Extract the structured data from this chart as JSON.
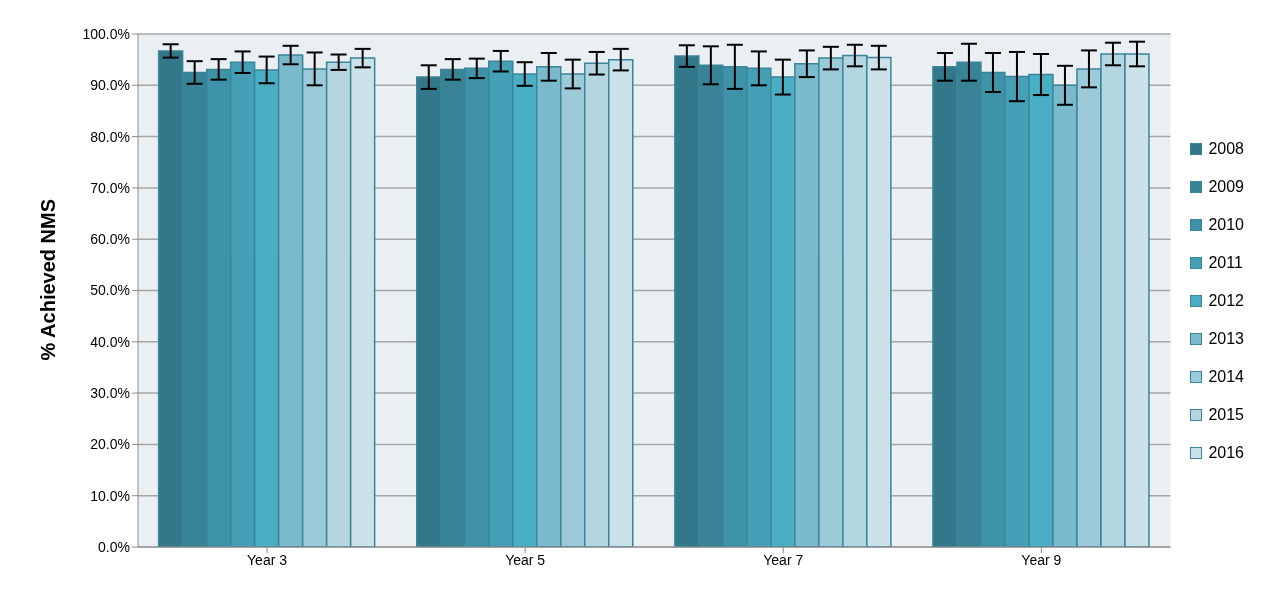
{
  "chart_data": {
    "type": "bar",
    "ylabel": "% Achieved NMS",
    "categories": [
      "Year 3",
      "Year 5",
      "Year 7",
      "Year 9"
    ],
    "series": [
      {
        "name": "2008",
        "color": "#33788a",
        "values": [
          96.7,
          91.6,
          95.7,
          93.6
        ],
        "errors": [
          1.3,
          2.3,
          2.1,
          2.7
        ]
      },
      {
        "name": "2009",
        "color": "#388496",
        "values": [
          92.5,
          93.1,
          93.9,
          94.5
        ],
        "errors": [
          2.2,
          2.0,
          3.7,
          3.6
        ]
      },
      {
        "name": "2010",
        "color": "#3f93a8",
        "values": [
          93.1,
          93.3,
          93.6,
          92.5
        ],
        "errors": [
          2.0,
          1.9,
          4.3,
          3.8
        ]
      },
      {
        "name": "2011",
        "color": "#45a0b5",
        "values": [
          94.5,
          94.7,
          93.3,
          91.7
        ],
        "errors": [
          2.1,
          2.0,
          3.3,
          4.8
        ]
      },
      {
        "name": "2012",
        "color": "#4aaec4",
        "values": [
          93.0,
          92.2,
          91.6,
          92.1
        ],
        "errors": [
          2.6,
          2.3,
          3.4,
          4.0
        ]
      },
      {
        "name": "2013",
        "color": "#7bbacd",
        "values": [
          95.9,
          93.6,
          94.2,
          90.0
        ],
        "errors": [
          1.8,
          2.7,
          2.6,
          3.8
        ]
      },
      {
        "name": "2014",
        "color": "#9ccad9",
        "values": [
          93.2,
          92.2,
          95.3,
          93.2
        ],
        "errors": [
          3.2,
          2.8,
          2.2,
          3.6
        ]
      },
      {
        "name": "2015",
        "color": "#b5d5e1",
        "values": [
          94.5,
          94.3,
          95.8,
          96.1
        ],
        "errors": [
          1.5,
          2.2,
          2.1,
          2.2
        ]
      },
      {
        "name": "2016",
        "color": "#cce2ea",
        "values": [
          95.3,
          95.0,
          95.4,
          96.1
        ],
        "errors": [
          1.8,
          2.1,
          2.3,
          2.4
        ]
      }
    ],
    "ylim": [
      0,
      100
    ],
    "yticks": [
      {
        "value": 0,
        "label": "0.0%"
      },
      {
        "value": 10,
        "label": "10.0%"
      },
      {
        "value": 20,
        "label": "20.0%"
      },
      {
        "value": 30,
        "label": "30.0%"
      },
      {
        "value": 40,
        "label": "40.0%"
      },
      {
        "value": 50,
        "label": "50.0%"
      },
      {
        "value": 60,
        "label": "60.0%"
      },
      {
        "value": 70,
        "label": "70.0%"
      },
      {
        "value": 80,
        "label": "80.0%"
      },
      {
        "value": 90,
        "label": "90.0%"
      },
      {
        "value": 100,
        "label": "100.0%"
      }
    ],
    "grid": "y",
    "legend": "right"
  }
}
